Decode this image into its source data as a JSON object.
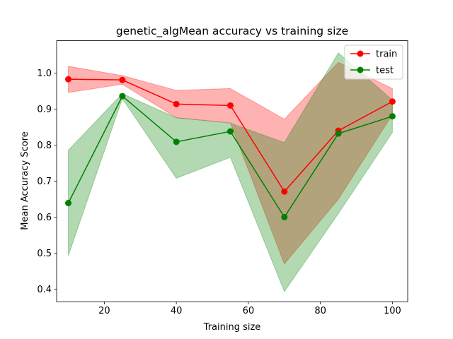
{
  "chart_data": {
    "type": "line",
    "title": "genetic_algMean accuracy vs training size",
    "xlabel": "Training size",
    "ylabel": "Mean Accuracy Score",
    "xlim": [
      6.75,
      104.25
    ],
    "ylim": [
      0.365,
      1.09
    ],
    "xticks": [
      20,
      40,
      60,
      80,
      100
    ],
    "yticks": [
      0.4,
      0.5,
      0.6,
      0.7,
      0.8,
      0.9,
      1.0
    ],
    "xtick_labels": [
      "20",
      "40",
      "60",
      "80",
      "100"
    ],
    "ytick_labels": [
      "0.4",
      "0.5",
      "0.6",
      "0.7",
      "0.8",
      "0.9",
      "1.0"
    ],
    "grid": false,
    "legend_position": "top-right",
    "x": [
      10,
      25,
      40,
      55,
      70,
      85,
      100
    ],
    "series": [
      {
        "name": "train",
        "color": "#ff0000",
        "band_color": "#ff0000",
        "values": [
          0.983,
          0.981,
          0.914,
          0.91,
          0.671,
          0.84,
          0.921
        ],
        "lower": [
          0.946,
          0.969,
          0.876,
          0.862,
          0.47,
          0.65,
          0.885
        ],
        "upper": [
          1.019,
          0.993,
          0.952,
          0.957,
          0.872,
          1.03,
          0.957
        ]
      },
      {
        "name": "test",
        "color": "#008000",
        "band_color": "#008000",
        "values": [
          0.639,
          0.936,
          0.809,
          0.838,
          0.6,
          0.832,
          0.88
        ],
        "lower": [
          0.493,
          0.929,
          0.708,
          0.766,
          0.393,
          0.61,
          0.835
        ],
        "upper": [
          0.786,
          0.943,
          0.876,
          0.861,
          0.807,
          1.056,
          0.925
        ]
      }
    ]
  }
}
